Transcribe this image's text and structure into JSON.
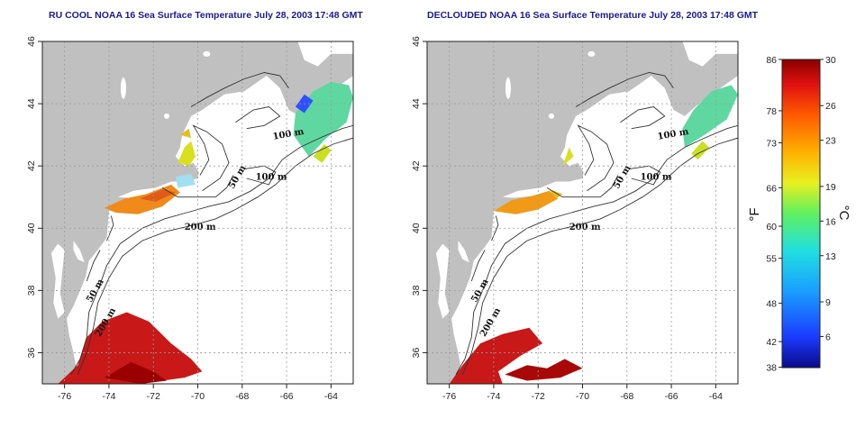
{
  "panels": [
    {
      "title": "RU COOL NOAA 16 Sea Surface Temperature July 28, 2003 17:48 GMT",
      "variant": "cool"
    },
    {
      "title": "DECLOUDED NOAA 16 Sea Surface Temperature July 28, 2003 17:48 GMT",
      "variant": "declouded"
    }
  ],
  "axes": {
    "lon_ticks": [
      "-76",
      "-74",
      "-72",
      "-70",
      "-68",
      "-66",
      "-64"
    ],
    "lat_ticks": [
      "36",
      "38",
      "40",
      "42",
      "44",
      "46"
    ]
  },
  "contours": {
    "labels": [
      "100 m",
      "100 m",
      "50 m",
      "200 m",
      "50 m",
      "200 m"
    ]
  },
  "colorbar": {
    "fahrenheit_ticks": [
      "86",
      "78",
      "73",
      "66",
      "60",
      "55",
      "48",
      "42",
      "38"
    ],
    "celsius_ticks": [
      "30",
      "26",
      "23",
      "19",
      "16",
      "13",
      "9",
      "6"
    ],
    "fahrenheit_unit": "°F",
    "celsius_unit": "°C"
  },
  "colors": {
    "land": "#c0c0c0",
    "ocean": "#ffffff",
    "title": "#1a1a8c",
    "grid": "#9a9a9a",
    "contour": "#333333"
  }
}
